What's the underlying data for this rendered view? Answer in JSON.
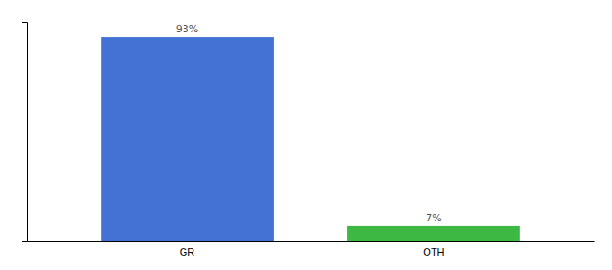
{
  "chart_data": {
    "type": "bar",
    "categories": [
      "GR",
      "OTH"
    ],
    "values": [
      93,
      7
    ],
    "value_labels": [
      "93%",
      "7%"
    ],
    "colors": [
      "#4472d4",
      "#3cb843"
    ],
    "ylim": [
      0,
      100
    ],
    "grid": false,
    "data_labels": true,
    "tick_labels": "x"
  }
}
